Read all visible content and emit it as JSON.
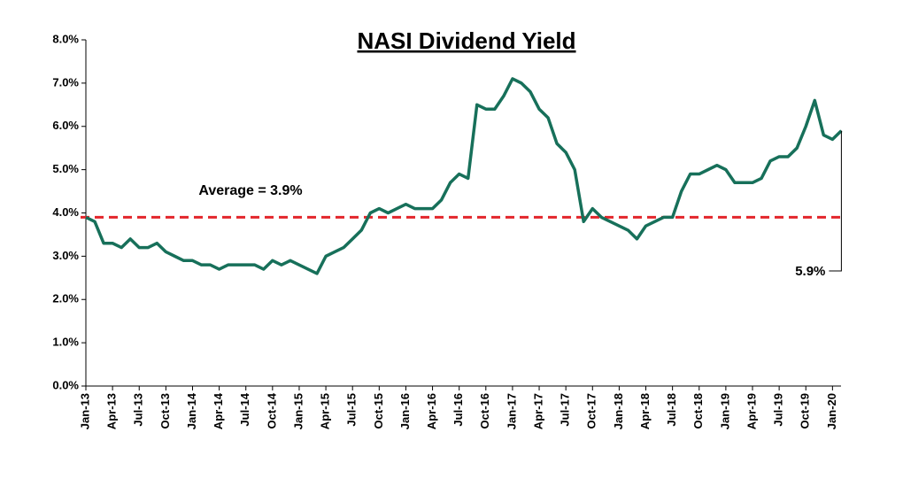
{
  "chart_data": {
    "type": "line",
    "title": "NASI Dividend Yield",
    "categories": [
      "Jan-13",
      null,
      null,
      "Apr-13",
      null,
      null,
      "Jul-13",
      null,
      null,
      "Oct-13",
      null,
      null,
      "Jan-14",
      null,
      null,
      "Apr-14",
      null,
      null,
      "Jul-14",
      null,
      null,
      "Oct-14",
      null,
      null,
      "Jan-15",
      null,
      null,
      "Apr-15",
      null,
      null,
      "Jul-15",
      null,
      null,
      "Oct-15",
      null,
      null,
      "Jan-16",
      null,
      null,
      "Apr-16",
      null,
      null,
      "Jul-16",
      null,
      null,
      "Oct-16",
      null,
      null,
      "Jan-17",
      null,
      null,
      "Apr-17",
      null,
      null,
      "Jul-17",
      null,
      null,
      "Oct-17",
      null,
      null,
      "Jan-18",
      null,
      null,
      "Apr-18",
      null,
      null,
      "Jul-18",
      null,
      null,
      "Oct-18",
      null,
      null,
      "Jan-19",
      null,
      null,
      "Apr-19",
      null,
      null,
      "Jul-19",
      null,
      null,
      "Oct-19",
      null,
      null,
      "Jan-20",
      null
    ],
    "series": [
      {
        "name": "NASI Dividend Yield",
        "color": "#17705a",
        "values": [
          3.9,
          3.8,
          3.3,
          3.3,
          3.2,
          3.4,
          3.2,
          3.2,
          3.3,
          3.1,
          3.0,
          2.9,
          2.9,
          2.8,
          2.8,
          2.7,
          2.8,
          2.8,
          2.8,
          2.8,
          2.7,
          2.9,
          2.8,
          2.9,
          2.8,
          2.7,
          2.6,
          3.0,
          3.1,
          3.2,
          3.4,
          3.6,
          4.0,
          4.1,
          4.0,
          4.1,
          4.2,
          4.1,
          4.1,
          4.1,
          4.3,
          4.7,
          4.9,
          4.8,
          6.5,
          6.4,
          6.4,
          6.7,
          7.1,
          7.0,
          6.8,
          6.4,
          6.2,
          5.6,
          5.4,
          5.0,
          3.8,
          4.1,
          3.9,
          3.8,
          3.7,
          3.6,
          3.4,
          3.7,
          3.8,
          3.9,
          3.9,
          4.5,
          4.9,
          4.9,
          5.0,
          5.1,
          5.0,
          4.7,
          4.7,
          4.7,
          4.8,
          5.2,
          5.3,
          5.3,
          5.5,
          6.0,
          6.6,
          5.8,
          5.7,
          5.9
        ]
      }
    ],
    "ylim": [
      0,
      8
    ],
    "yticks": [
      {
        "value": 0,
        "label": "0.0%"
      },
      {
        "value": 1,
        "label": "1.0%"
      },
      {
        "value": 2,
        "label": "2.0%"
      },
      {
        "value": 3,
        "label": "3.0%"
      },
      {
        "value": 4,
        "label": "4.0%"
      },
      {
        "value": 5,
        "label": "5.0%"
      },
      {
        "value": 6,
        "label": "6.0%"
      },
      {
        "value": 7,
        "label": "7.0%"
      },
      {
        "value": 8,
        "label": "8.0%"
      }
    ],
    "average": 3.9,
    "average_label": "Average = 3.9%",
    "average_color": "#e3262b",
    "end_label": "5.9%"
  }
}
